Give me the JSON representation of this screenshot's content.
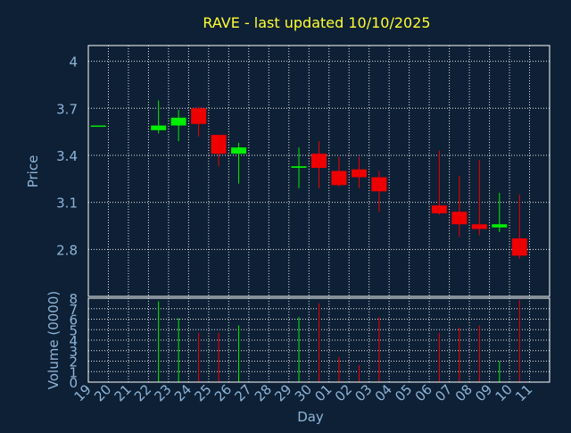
{
  "chart_data": {
    "type": "candlestick",
    "title": "RAVE - last updated 10/10/2025",
    "price_panel": {
      "ylabel": "Price",
      "ylim": [
        2.5,
        4.1
      ],
      "yticks": [
        2.8,
        3.1,
        3.4,
        3.7,
        4
      ],
      "ytick_labels": [
        "2.8",
        "3.1",
        "3.4",
        "3.7",
        "4"
      ]
    },
    "volume_panel": {
      "ylabel": "Volume (0000)",
      "ylim": [
        0,
        8
      ],
      "yticks": [
        0,
        1,
        2,
        3,
        4,
        5,
        6,
        7,
        8
      ],
      "ytick_labels": [
        "0",
        "1",
        "2",
        "3",
        "4",
        "5",
        "6",
        "7",
        "8"
      ]
    },
    "xlabel": "Day",
    "x_ticks": [
      "19",
      "20",
      "21",
      "22",
      "23",
      "24",
      "25",
      "26",
      "27",
      "28",
      "29",
      "30",
      "01",
      "02",
      "03",
      "04",
      "05",
      "06",
      "07",
      "08",
      "09",
      "10",
      "11"
    ],
    "grid": true,
    "colors": {
      "up": "#00ee00",
      "down": "#ee0000",
      "grid": "#ffffff",
      "text": "#8eb4d8",
      "title": "#ffff33",
      "background": "#0e2035"
    },
    "candles": [
      {
        "day": "19",
        "open": 3.59,
        "high": 3.59,
        "low": 3.59,
        "close": 3.59,
        "volume": 0
      },
      {
        "day": "22",
        "open": 3.56,
        "high": 3.75,
        "low": 3.54,
        "close": 3.59,
        "volume": 7.7
      },
      {
        "day": "23",
        "open": 3.59,
        "high": 3.69,
        "low": 3.49,
        "close": 3.64,
        "volume": 6.1
      },
      {
        "day": "24",
        "open": 3.7,
        "high": 3.71,
        "low": 3.52,
        "close": 3.6,
        "volume": 4.7
      },
      {
        "day": "25",
        "open": 3.53,
        "high": 3.53,
        "low": 3.33,
        "close": 3.41,
        "volume": 4.7
      },
      {
        "day": "26",
        "open": 3.41,
        "high": 3.48,
        "low": 3.22,
        "close": 3.45,
        "volume": 5.4
      },
      {
        "day": "29",
        "open": 3.32,
        "high": 3.45,
        "low": 3.19,
        "close": 3.33,
        "volume": 6.2
      },
      {
        "day": "30",
        "open": 3.41,
        "high": 3.49,
        "low": 3.19,
        "close": 3.32,
        "volume": 7.5
      },
      {
        "day": "01",
        "open": 3.3,
        "high": 3.39,
        "low": 3.2,
        "close": 3.21,
        "volume": 2.4
      },
      {
        "day": "02",
        "open": 3.31,
        "high": 3.39,
        "low": 3.19,
        "close": 3.26,
        "volume": 1.6
      },
      {
        "day": "03",
        "open": 3.26,
        "high": 3.3,
        "low": 3.04,
        "close": 3.17,
        "volume": 6.2
      },
      {
        "day": "06",
        "open": 3.08,
        "high": 3.43,
        "low": 3.02,
        "close": 3.03,
        "volume": 4.7
      },
      {
        "day": "07",
        "open": 3.04,
        "high": 3.27,
        "low": 2.88,
        "close": 2.96,
        "volume": 5.2
      },
      {
        "day": "08",
        "open": 2.96,
        "high": 3.37,
        "low": 2.89,
        "close": 2.93,
        "volume": 5.4
      },
      {
        "day": "09",
        "open": 2.94,
        "high": 3.16,
        "low": 2.91,
        "close": 2.96,
        "volume": 2.0
      },
      {
        "day": "10",
        "open": 2.87,
        "high": 3.15,
        "low": 2.74,
        "close": 2.76,
        "volume": 7.8
      }
    ]
  }
}
